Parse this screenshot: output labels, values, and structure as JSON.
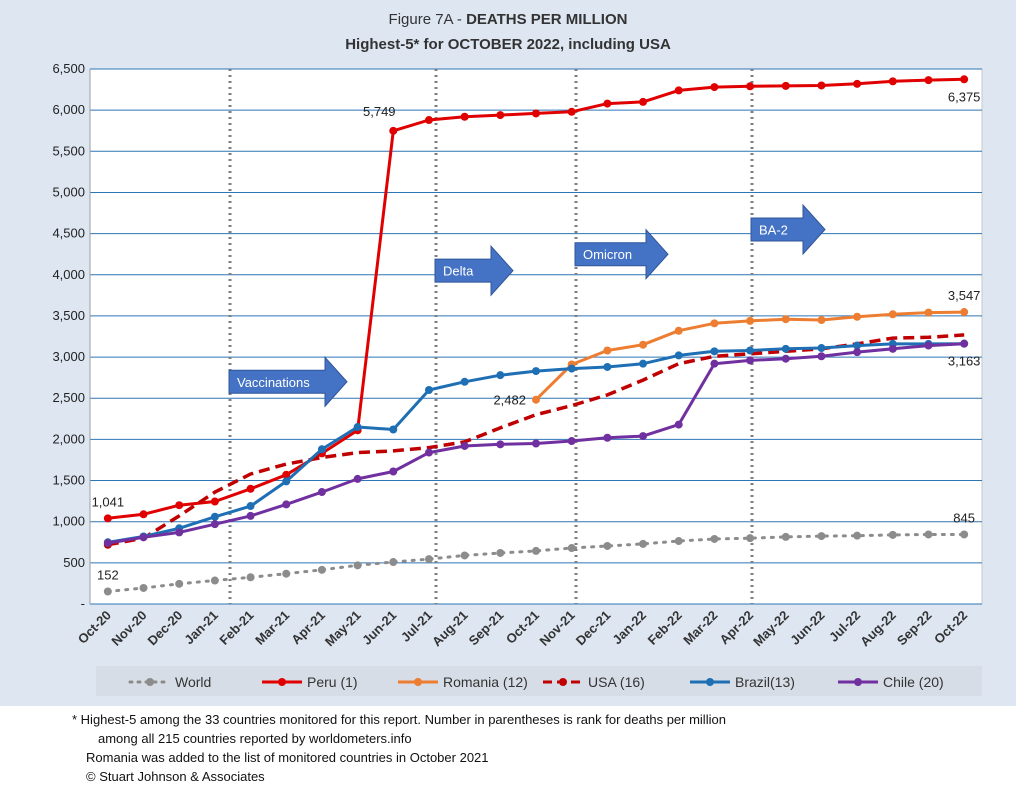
{
  "title_prefix": "Figure 7A - ",
  "title_bold": "DEATHS PER MILLION",
  "subtitle": "Highest-5* for  OCTOBER 2022, including USA",
  "notes": [
    "* Highest-5 among the 33 countries monitored for this report. Number in parentheses is rank for deaths per million",
    "among all 215 countries reported by worldometers.info",
    "Romania was added to the list of monitored countries in October 2021",
    "© Stuart Johnson & Associates"
  ],
  "chart_data": {
    "type": "line",
    "categories": [
      "Oct-20",
      "Nov-20",
      "Dec-20",
      "Jan-21",
      "Feb-21",
      "Mar-21",
      "Apr-21",
      "May-21",
      "Jun-21",
      "Jul-21",
      "Aug-21",
      "Sep-21",
      "Oct-21",
      "Nov-21",
      "Dec-21",
      "Jan-22",
      "Feb-22",
      "Mar-22",
      "Apr-22",
      "May-22",
      "Jun-22",
      "Jul-22",
      "Aug-22",
      "Sep-22",
      "Oct-22"
    ],
    "y_ticks": [
      "-",
      "500",
      "1,000",
      "1,500",
      "2,000",
      "2,500",
      "3,000",
      "3,500",
      "4,000",
      "4,500",
      "5,000",
      "5,500",
      "6,000",
      "6,500"
    ],
    "ylim": [
      0,
      6500
    ],
    "grid": true,
    "legend_position": "bottom",
    "series": [
      {
        "name": "World",
        "color": "#8c8c8c",
        "style": "dotted",
        "values": [
          152,
          195,
          245,
          285,
          325,
          368,
          415,
          470,
          510,
          545,
          590,
          620,
          645,
          680,
          705,
          730,
          765,
          790,
          800,
          815,
          825,
          830,
          840,
          845,
          845
        ]
      },
      {
        "name": "Peru (1)",
        "color": "#e00000",
        "style": "solid",
        "values": [
          1041,
          1090,
          1200,
          1245,
          1400,
          1570,
          1830,
          2110,
          5749,
          5880,
          5920,
          5940,
          5960,
          5980,
          6080,
          6100,
          6240,
          6280,
          6290,
          6295,
          6300,
          6320,
          6350,
          6365,
          6375
        ]
      },
      {
        "name": "Romania (12)",
        "color": "#ed7d31",
        "style": "solid",
        "values": [
          null,
          null,
          null,
          null,
          null,
          null,
          null,
          null,
          null,
          null,
          null,
          null,
          2482,
          2910,
          3080,
          3150,
          3320,
          3410,
          3440,
          3460,
          3450,
          3490,
          3520,
          3540,
          3547
        ]
      },
      {
        "name": "USA (16)",
        "color": "#c00000",
        "style": "dashed",
        "values": [
          720,
          800,
          1070,
          1360,
          1580,
          1700,
          1780,
          1840,
          1860,
          1900,
          1970,
          2140,
          2300,
          2410,
          2540,
          2720,
          2920,
          3010,
          3040,
          3070,
          3100,
          3160,
          3230,
          3240,
          3270
        ]
      },
      {
        "name": "Brazil(13)",
        "color": "#1f6fb5",
        "style": "solid",
        "values": [
          750,
          820,
          920,
          1060,
          1190,
          1490,
          1880,
          2150,
          2120,
          2600,
          2700,
          2780,
          2830,
          2860,
          2880,
          2920,
          3020,
          3070,
          3080,
          3100,
          3110,
          3140,
          3160,
          3160,
          3163
        ]
      },
      {
        "name": "Chile (20)",
        "color": "#7030a0",
        "style": "solid",
        "values": [
          740,
          810,
          870,
          970,
          1070,
          1210,
          1360,
          1520,
          1610,
          1840,
          1920,
          1940,
          1950,
          1980,
          2020,
          2040,
          2180,
          2920,
          2960,
          2980,
          3010,
          3060,
          3100,
          3140,
          3163
        ]
      }
    ],
    "data_labels": [
      {
        "text": "1,041",
        "series": "Peru (1)",
        "index": 0,
        "pos": "above"
      },
      {
        "text": "5,749",
        "series": "Peru (1)",
        "index": 8,
        "pos": "above-left"
      },
      {
        "text": "6,375",
        "series": "Peru (1)",
        "index": 24,
        "pos": "below"
      },
      {
        "text": "2,482",
        "series": "Romania (12)",
        "index": 12,
        "pos": "left"
      },
      {
        "text": "3,547",
        "series": "Romania (12)",
        "index": 24,
        "pos": "above"
      },
      {
        "text": "3,163",
        "series": "Brazil(13)",
        "index": 24,
        "pos": "below"
      },
      {
        "text": "152",
        "series": "World",
        "index": 0,
        "pos": "above"
      },
      {
        "text": "845",
        "series": "World",
        "index": 24,
        "pos": "above"
      }
    ],
    "annotations": [
      {
        "text": "Vaccinations",
        "line_at": "Jan-21"
      },
      {
        "text": "Delta",
        "line_at": "Jul-21"
      },
      {
        "text": "Omicron",
        "line_at": "Nov-21"
      },
      {
        "text": "BA-2",
        "line_at": "Apr-22"
      }
    ]
  }
}
